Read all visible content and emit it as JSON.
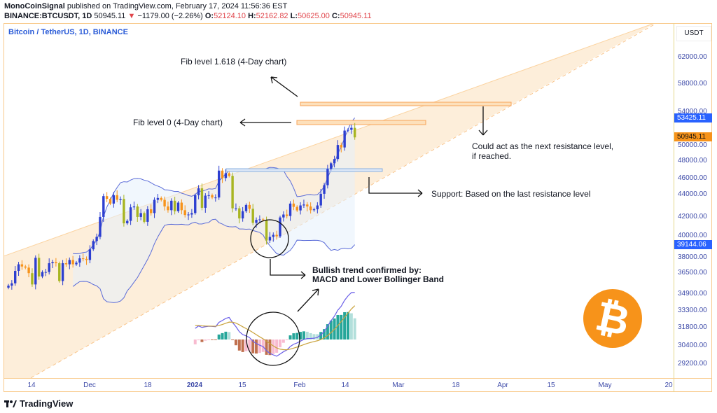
{
  "header": {
    "author": "MonoCoinSignal",
    "published": "published on TradingView.com, February 17, 2024 11:56:36 EST",
    "symbol_line": "BINANCE:BTCUSDT, 1D",
    "last": "50945.11",
    "change": "−1179.00 (−2.26%)",
    "o_label": "O:",
    "o": "52124.10",
    "h_label": "H:",
    "h": "52162.82",
    "l_label": "L:",
    "l": "50625.00",
    "c_label": "C:",
    "c": "50945.11",
    "down_icon": "triangle-down-icon"
  },
  "chart_title": "Bitcoin / TetherUS, 1D, BINANCE",
  "price_axis": {
    "currency": "USDT",
    "scale": "log",
    "ticks": [
      "62000.00",
      "58000.00",
      "54000.00",
      "50000.00",
      "48000.00",
      "46000.00",
      "44000.00",
      "42000.00",
      "40000.00",
      "38000.00",
      "36500.00",
      "34900.00",
      "33300.00",
      "31800.00",
      "30400.00",
      "29200.00"
    ],
    "tag_upper_band": "53425.11",
    "tag_last": "50945.11",
    "tag_lower_band": "39144.06"
  },
  "time_axis": {
    "ticks": [
      "14",
      "Dec",
      "18",
      "2024",
      "15",
      "Feb",
      "14",
      "Mar",
      "18",
      "Apr",
      "15",
      "May",
      "20"
    ]
  },
  "annotations": {
    "fib1618": "Fib level 1.618 (4-Day chart)",
    "fib0": "Fib level 0 (4-Day chart)",
    "resistance_1": "Could act as the next resistance level,",
    "resistance_2": "if reached.",
    "support": "Support: Based on the last resistance level",
    "bullish_1": "Bullish trend confirmed by:",
    "bullish_2": "MACD and Lower Bollinger Band"
  },
  "colors": {
    "up": "#2d3fd0",
    "down": "#f7931a",
    "down_alt": "#a8b521",
    "channel": "#fde9cc",
    "bitcoin": "#f7931a",
    "band": "#5a6bd8"
  },
  "chart_data": {
    "type": "candlestick",
    "first_date": "2023-11-07",
    "last_date": "2024-02-17",
    "closes": [
      35400,
      35600,
      36700,
      37300,
      37100,
      37000,
      36500,
      35500,
      37900,
      36200,
      36600,
      36600,
      37400,
      37500,
      37400,
      35800,
      37400,
      37300,
      37700,
      37300,
      37450,
      37850,
      37800,
      37700,
      38700,
      39500,
      39900,
      41900,
      44100,
      43800,
      43300,
      44200,
      43700,
      43800,
      41250,
      41500,
      42900,
      43000,
      41900,
      42300,
      41400,
      42700,
      42300,
      43700,
      43900,
      43700,
      43000,
      42600,
      43600,
      42500,
      43400,
      42600,
      42100,
      42150,
      42300,
      44200,
      44950,
      42850,
      44150,
      44200,
      43950,
      43950,
      46950,
      46100,
      46650,
      46350,
      42800,
      42800,
      41750,
      42500,
      43150,
      42750,
      41300,
      41600,
      41650,
      41600,
      39550,
      39900,
      40100,
      39950,
      41850,
      42150,
      42000,
      43300,
      42950,
      42580,
      43100,
      43200,
      43000,
      42600,
      42700,
      43100,
      44350,
      45300,
      47150,
      47800,
      48300,
      50000,
      49700,
      51800,
      51900,
      52150,
      50945
    ],
    "indicators": [
      "Bollinger Bands",
      "MACD"
    ],
    "ylim": [
      28500,
      66000
    ]
  },
  "footer": {
    "brand": "TradingView",
    "logo_icon": "tradingview-logo-icon"
  }
}
